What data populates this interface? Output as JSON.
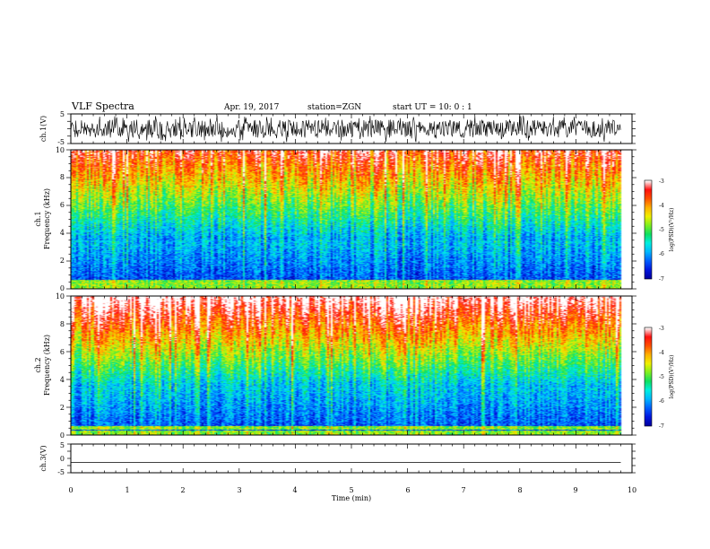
{
  "header": {
    "title": "VLF Spectra",
    "date": "Apr. 19, 2017",
    "station": "station=ZGN",
    "start": "start  UT =   10: 0  : 1"
  },
  "colors": {
    "colormap": [
      "#0000a0",
      "#0018e0",
      "#0060ff",
      "#00b8ff",
      "#00f0e0",
      "#10e060",
      "#80f020",
      "#f0f000",
      "#ffb000",
      "#ff5000",
      "#ff1010",
      "#ffffff"
    ],
    "trace": "#000000",
    "axis": "#000000"
  },
  "chart_data": [
    {
      "type": "line",
      "panel": "ch1-waveform",
      "ylabel": "ch.1(V)",
      "ylim": [
        -5,
        5
      ],
      "yticks": [
        "5",
        "-5"
      ],
      "xlim": [
        0,
        10
      ],
      "description_of_signal": "dense noisy waveform spanning roughly -5 to 5 V until about 9.8 min"
    },
    {
      "type": "heatmap",
      "panel": "ch1-spectrogram",
      "ylabel": "ch.1\nFrequency (kHz)",
      "ylabel_line1": "ch.1",
      "ylabel_line2": "Frequency (kHz)",
      "ylim": [
        0,
        10
      ],
      "yticks": [
        "0",
        "2",
        "4",
        "6",
        "8",
        "10"
      ],
      "xlim": [
        0,
        10
      ],
      "data_end_min": 9.8,
      "colorbar": {
        "label": "log(PSD)(V²/Hz)",
        "range": [
          -7,
          -3
        ],
        "ticks": [
          "-3",
          "-4",
          "-5",
          "-6",
          "-7"
        ]
      }
    },
    {
      "type": "heatmap",
      "panel": "ch2-spectrogram",
      "ylabel_line1": "ch.2",
      "ylabel_line2": "Frequency (kHz)",
      "ylim": [
        0,
        10
      ],
      "yticks": [
        "0",
        "2",
        "4",
        "6",
        "8",
        "10"
      ],
      "xlim": [
        0,
        10
      ],
      "data_end_min": 9.8,
      "colorbar": {
        "label": "log(PSD)(V²/Hz)",
        "range": [
          -7,
          -3
        ],
        "ticks": [
          "-3",
          "-4",
          "-5",
          "-6",
          "-7"
        ]
      }
    },
    {
      "type": "line",
      "panel": "ch3-waveform",
      "ylabel": "ch.3(V)",
      "ylim": [
        -5,
        5
      ],
      "yticks": [
        "5",
        "0",
        "-5"
      ],
      "x": [
        0,
        9.8
      ],
      "y": [
        -1.5,
        -1.5
      ],
      "xlim": [
        0,
        10
      ],
      "xlabel": "Time  (min)",
      "xticks": [
        "0",
        "1",
        "2",
        "3",
        "4",
        "5",
        "6",
        "7",
        "8",
        "9",
        "10"
      ]
    }
  ]
}
